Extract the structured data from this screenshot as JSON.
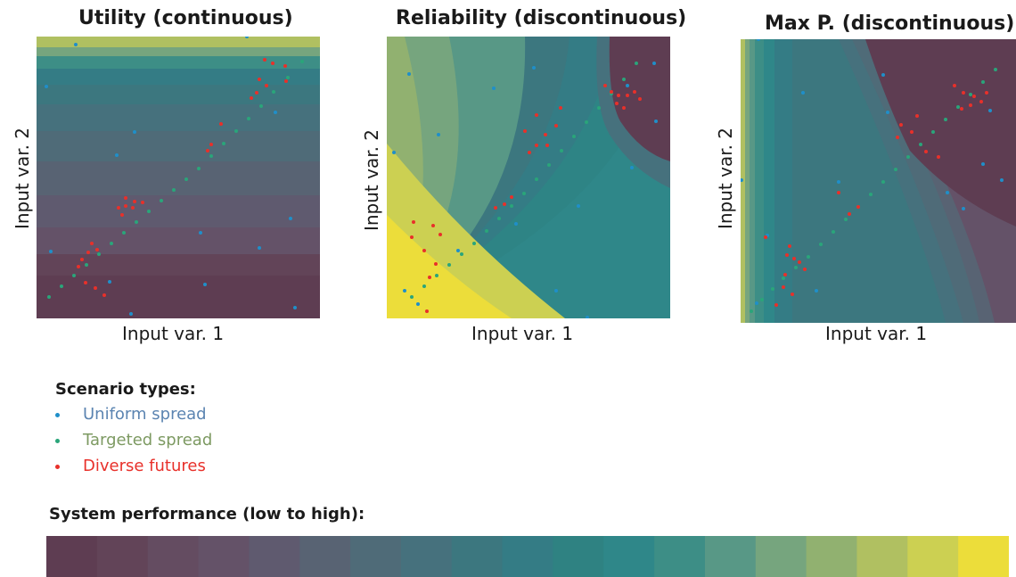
{
  "panels": [
    {
      "title": "Utility (continuous)",
      "xlabel": "Input var. 1",
      "ylabel": "Input var. 2"
    },
    {
      "title": "Reliability (discontinuous)",
      "xlabel": "Input var. 1",
      "ylabel": "Input var. 2"
    },
    {
      "title": "Max P. (discontinuous)",
      "xlabel": "Input var. 1",
      "ylabel": "Input var. 2"
    }
  ],
  "legend": {
    "title": "Scenario types:",
    "items": [
      {
        "label": "Uniform spread",
        "color": "#1f8fc9",
        "text_color": "#5b84b1"
      },
      {
        "label": "Targeted spread",
        "color": "#2aa57a",
        "text_color": "#7d9a62"
      },
      {
        "label": "Diverse futures",
        "color": "#e8302a",
        "text_color": "#e8302a"
      }
    ]
  },
  "colorbar": {
    "title": "System performance (low to high):",
    "colors": [
      "#5e3d52",
      "#624458",
      "#644c61",
      "#645268",
      "#5f5a6f",
      "#586373",
      "#4f6b78",
      "#46717d",
      "#3c777f",
      "#347c85",
      "#2f8282",
      "#2f8789",
      "#3d8e86",
      "#589886",
      "#76a57e",
      "#91b170",
      "#b0c061",
      "#ccd052",
      "#ecdd3a"
    ]
  }
}
